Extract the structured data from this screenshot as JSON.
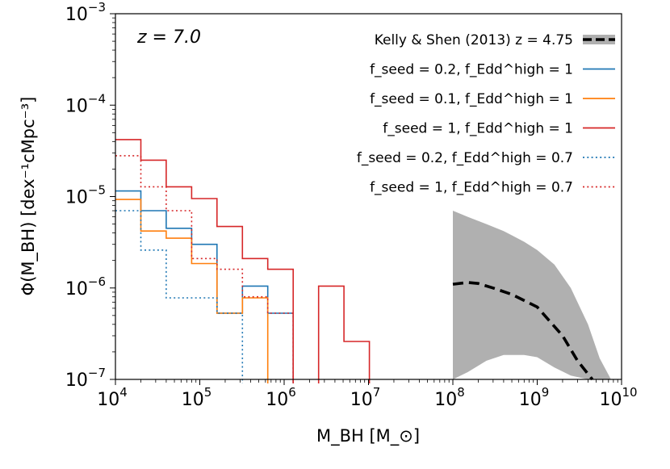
{
  "chart_data": {
    "type": "line",
    "subtype": "step-histogram",
    "annotation": "z = 7.0",
    "xlabel": "M_BH [M_⊙]",
    "ylabel": "Φ(M_BH) [dex⁻¹cMpc⁻³]",
    "xscale": "log",
    "yscale": "log",
    "xlim": [
      10000,
      10000000000
    ],
    "ylim": [
      1e-07,
      0.001
    ],
    "x_ticks": [
      {
        "base": "10",
        "exp": "4"
      },
      {
        "base": "10",
        "exp": "5"
      },
      {
        "base": "10",
        "exp": "6"
      },
      {
        "base": "10",
        "exp": "7"
      },
      {
        "base": "10",
        "exp": "8"
      },
      {
        "base": "10",
        "exp": "9"
      },
      {
        "base": "10",
        "exp": "10"
      }
    ],
    "y_ticks": [
      {
        "base": "10",
        "exp": "−7"
      },
      {
        "base": "10",
        "exp": "−6"
      },
      {
        "base": "10",
        "exp": "−5"
      },
      {
        "base": "10",
        "exp": "−4"
      },
      {
        "base": "10",
        "exp": "−3"
      }
    ],
    "legend_position": "top-right",
    "grid": false,
    "bin_edges": [
      10000,
      20000,
      40000,
      80000,
      160000,
      320000,
      640000,
      1280000,
      2560000,
      5120000,
      10240000
    ],
    "series": [
      {
        "name": "f_seed = 0.2, f_Edd^high = 1",
        "color": "#1f77b4",
        "style": "solid",
        "values": [
          1.15e-05,
          7e-06,
          4.5e-06,
          3e-06,
          5.3e-07,
          1.05e-06,
          5.3e-07,
          null,
          null,
          null
        ]
      },
      {
        "name": "f_seed = 0.1, f_Edd^high = 1",
        "color": "#ff7f0e",
        "style": "solid",
        "values": [
          9.3e-06,
          4.2e-06,
          3.5e-06,
          1.85e-06,
          5.3e-07,
          7.8e-07,
          null,
          null,
          null,
          null
        ]
      },
      {
        "name": "f_seed = 1, f_Edd^high = 1",
        "color": "#d62728",
        "style": "solid",
        "values": [
          4.2e-05,
          2.5e-05,
          1.28e-05,
          9.5e-06,
          4.7e-06,
          2.1e-06,
          1.6e-06,
          null,
          1.05e-06,
          2.6e-07
        ]
      },
      {
        "name": "f_seed = 0.2, f_Edd^high = 0.7",
        "color": "#1f77b4",
        "style": "dotted",
        "values": [
          7e-06,
          2.6e-06,
          7.8e-07,
          7.8e-07,
          5.3e-07,
          null,
          null,
          null,
          null,
          null
        ]
      },
      {
        "name": "f_seed = 1, f_Edd^high = 0.7",
        "color": "#d62728",
        "style": "dotted",
        "values": [
          2.8e-05,
          1.28e-05,
          7e-06,
          2.1e-06,
          1.6e-06,
          8e-07,
          5.3e-07,
          null,
          null,
          null
        ]
      }
    ],
    "reference": {
      "name": "Kelly & Shen (2013) z = 4.75",
      "color": "#000000",
      "band_color": "#b0b0b0",
      "x": [
        100000000,
        150000000,
        200000000,
        300000000,
        500000000,
        1000000000,
        2000000000,
        3000000000,
        4500000000,
        7000000000
      ],
      "y": [
        1.1e-06,
        1.15e-06,
        1.12e-06,
        1e-06,
        8.5e-07,
        6.2e-07,
        3e-07,
        1.6e-07,
        1e-07,
        null
      ],
      "band_x": [
        100000000,
        150000000,
        250000000,
        400000000,
        700000000,
        1000000000,
        1600000000,
        2500000000,
        4000000000,
        5500000000,
        7500000000
      ],
      "band_upper": [
        7e-06,
        6e-06,
        5e-06,
        4.2e-06,
        3.2e-06,
        2.6e-06,
        1.8e-06,
        1e-06,
        4e-07,
        1.7e-07,
        1e-07
      ],
      "band_lower": [
        1e-07,
        1.2e-07,
        1.6e-07,
        1.85e-07,
        1.85e-07,
        1.75e-07,
        1.35e-07,
        1.1e-07,
        1e-07,
        1e-07,
        1e-07
      ]
    }
  }
}
